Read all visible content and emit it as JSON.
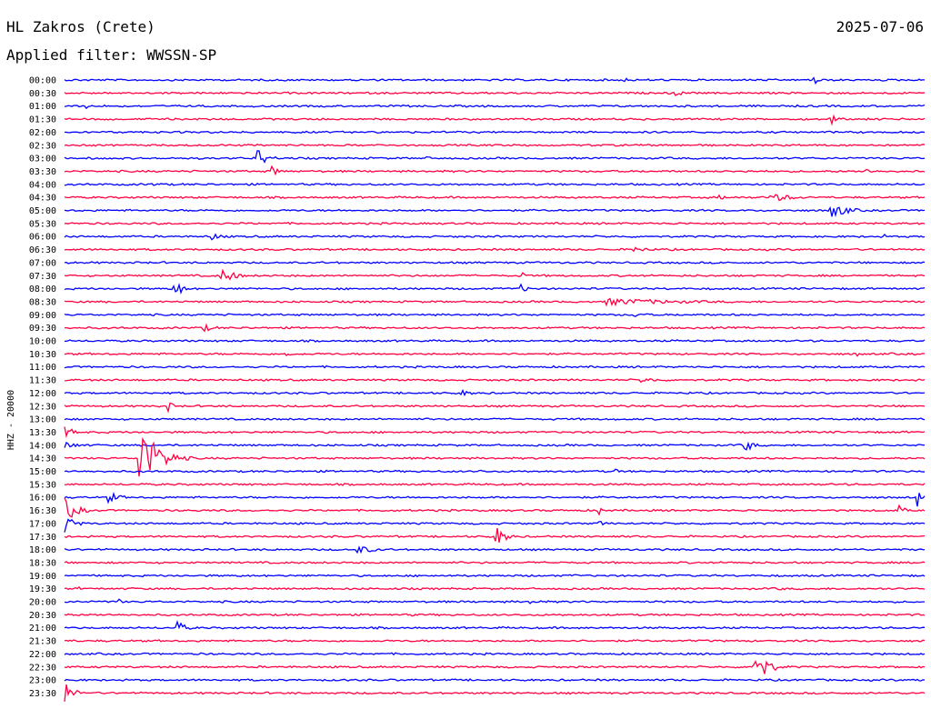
{
  "header": {
    "station": "HL Zakros (Crete)",
    "date": "2025-07-06",
    "filter": "Applied filter: WWSSN-SP"
  },
  "colors": {
    "trace_a": "#0000ff",
    "trace_b": "#ff0044"
  },
  "chart_data": {
    "type": "line",
    "ylabel": "HHZ - 20000",
    "rows": [
      {
        "label": "00:00",
        "events": [
          [
            0.65,
            4,
            20
          ],
          [
            0.87,
            14,
            12
          ]
        ]
      },
      {
        "label": "00:30",
        "events": [
          [
            0.71,
            5,
            22
          ]
        ]
      },
      {
        "label": "01:00",
        "events": [
          [
            0.025,
            3,
            16
          ]
        ]
      },
      {
        "label": "01:30",
        "events": [
          [
            0.89,
            9,
            14
          ]
        ]
      },
      {
        "label": "02:00",
        "events": []
      },
      {
        "label": "02:30",
        "events": [
          [
            0.61,
            3,
            10
          ]
        ]
      },
      {
        "label": "03:00",
        "events": [
          [
            0.22,
            18,
            30
          ],
          [
            0.42,
            4,
            10
          ]
        ]
      },
      {
        "label": "03:30",
        "events": [
          [
            0.24,
            8,
            22
          ],
          [
            0.79,
            3,
            10
          ],
          [
            0.93,
            4,
            30
          ]
        ]
      },
      {
        "label": "04:00",
        "events": [
          [
            0.1,
            3,
            22
          ]
        ]
      },
      {
        "label": "04:30",
        "events": [
          [
            0.76,
            4,
            20
          ],
          [
            0.82,
            5,
            90
          ]
        ]
      },
      {
        "label": "05:00",
        "events": [
          [
            0.89,
            9,
            60
          ]
        ]
      },
      {
        "label": "05:30",
        "events": []
      },
      {
        "label": "06:00",
        "events": [
          [
            0.17,
            4,
            50
          ],
          [
            0.95,
            6,
            8
          ]
        ]
      },
      {
        "label": "06:30",
        "events": [
          [
            0.66,
            5,
            40
          ]
        ]
      },
      {
        "label": "07:00",
        "events": []
      },
      {
        "label": "07:30",
        "events": [
          [
            0.18,
            12,
            40
          ],
          [
            0.53,
            6,
            14
          ]
        ]
      },
      {
        "label": "08:00",
        "events": [
          [
            0.125,
            14,
            26
          ],
          [
            0.53,
            5,
            24
          ]
        ]
      },
      {
        "label": "08:30",
        "events": [
          [
            0.63,
            4,
            320
          ]
        ]
      },
      {
        "label": "09:00",
        "events": [
          [
            0.66,
            4,
            40
          ]
        ]
      },
      {
        "label": "09:30",
        "events": [
          [
            0.16,
            5,
            40
          ]
        ]
      },
      {
        "label": "10:00",
        "events": []
      },
      {
        "label": "10:30",
        "events": [
          [
            0.255,
            8,
            12
          ],
          [
            0.92,
            4,
            10
          ]
        ]
      },
      {
        "label": "11:00",
        "events": []
      },
      {
        "label": "11:30",
        "events": [
          [
            0.67,
            3,
            80
          ]
        ]
      },
      {
        "label": "12:00",
        "events": [
          [
            0.46,
            4,
            40
          ]
        ]
      },
      {
        "label": "12:30",
        "events": [
          [
            0.12,
            9,
            10
          ],
          [
            0.29,
            3,
            20
          ]
        ]
      },
      {
        "label": "13:00",
        "events": []
      },
      {
        "label": "13:30",
        "events": [
          [
            0.0,
            6,
            40
          ]
        ]
      },
      {
        "label": "14:00",
        "events": [
          [
            0.0,
            4,
            60
          ],
          [
            0.79,
            11,
            22
          ]
        ]
      },
      {
        "label": "14:30",
        "events": [
          [
            0.085,
            44,
            60
          ]
        ]
      },
      {
        "label": "15:00",
        "events": [
          [
            0.48,
            4,
            10
          ],
          [
            0.64,
            4,
            10
          ]
        ]
      },
      {
        "label": "15:30",
        "events": []
      },
      {
        "label": "16:00",
        "events": [
          [
            0.05,
            7,
            40
          ],
          [
            0.99,
            16,
            10
          ]
        ]
      },
      {
        "label": "16:30",
        "events": [
          [
            0.0,
            14,
            40
          ],
          [
            0.62,
            8,
            10
          ],
          [
            0.97,
            6,
            20
          ]
        ]
      },
      {
        "label": "17:00",
        "events": [
          [
            0.0,
            12,
            30
          ],
          [
            0.62,
            7,
            8
          ]
        ]
      },
      {
        "label": "17:30",
        "events": [
          [
            0.5,
            14,
            30
          ]
        ]
      },
      {
        "label": "18:00",
        "events": [
          [
            0.34,
            5,
            60
          ]
        ]
      },
      {
        "label": "18:30",
        "events": []
      },
      {
        "label": "19:00",
        "events": [
          [
            0.59,
            5,
            10
          ]
        ]
      },
      {
        "label": "19:30",
        "events": [
          [
            0.015,
            3,
            10
          ],
          [
            0.83,
            3,
            20
          ]
        ]
      },
      {
        "label": "20:00",
        "events": [
          [
            0.06,
            8,
            10
          ],
          [
            0.54,
            3,
            40
          ]
        ]
      },
      {
        "label": "20:30",
        "events": [
          [
            0.4,
            4,
            8
          ]
        ]
      },
      {
        "label": "21:00",
        "events": [
          [
            0.13,
            10,
            24
          ]
        ]
      },
      {
        "label": "21:30",
        "events": []
      },
      {
        "label": "22:00",
        "events": []
      },
      {
        "label": "22:30",
        "events": [
          [
            0.8,
            26,
            40
          ]
        ]
      },
      {
        "label": "23:00",
        "events": [
          [
            0.99,
            8,
            10
          ]
        ]
      },
      {
        "label": "23:30",
        "events": [
          [
            0.0,
            12,
            30
          ]
        ]
      }
    ]
  }
}
